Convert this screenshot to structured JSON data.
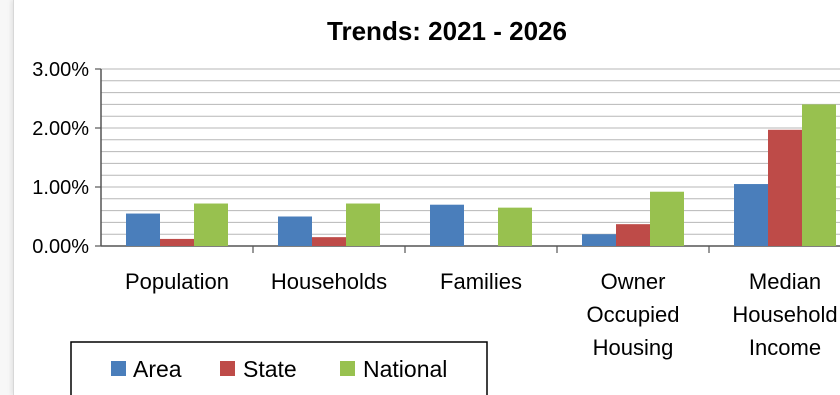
{
  "chart_data": {
    "type": "bar",
    "title": "Trends: 2021 - 2026",
    "categories": [
      [
        "Population"
      ],
      [
        "Households"
      ],
      [
        "Families"
      ],
      [
        "Owner",
        "Occupied",
        "Housing"
      ],
      [
        "Median",
        "Household",
        "Income"
      ]
    ],
    "series": [
      {
        "name": "Area",
        "color": "#4a7ebb",
        "values": [
          0.55,
          0.5,
          0.7,
          0.2,
          1.05
        ]
      },
      {
        "name": "State",
        "color": "#be4b48",
        "values": [
          0.12,
          0.15,
          null,
          0.37,
          1.97
        ]
      },
      {
        "name": "National",
        "color": "#98c14f",
        "values": [
          0.72,
          0.72,
          0.65,
          0.92,
          2.4
        ]
      }
    ],
    "ylim": [
      0,
      3
    ],
    "y_ticks": [
      {
        "value": 0,
        "label": "0.00%"
      },
      {
        "value": 1,
        "label": "1.00%"
      },
      {
        "value": 2,
        "label": "2.00%"
      },
      {
        "value": 3,
        "label": "3.00%"
      }
    ],
    "y_grid_step": 0.2,
    "legend_position": "bottom-left",
    "grid": true
  }
}
